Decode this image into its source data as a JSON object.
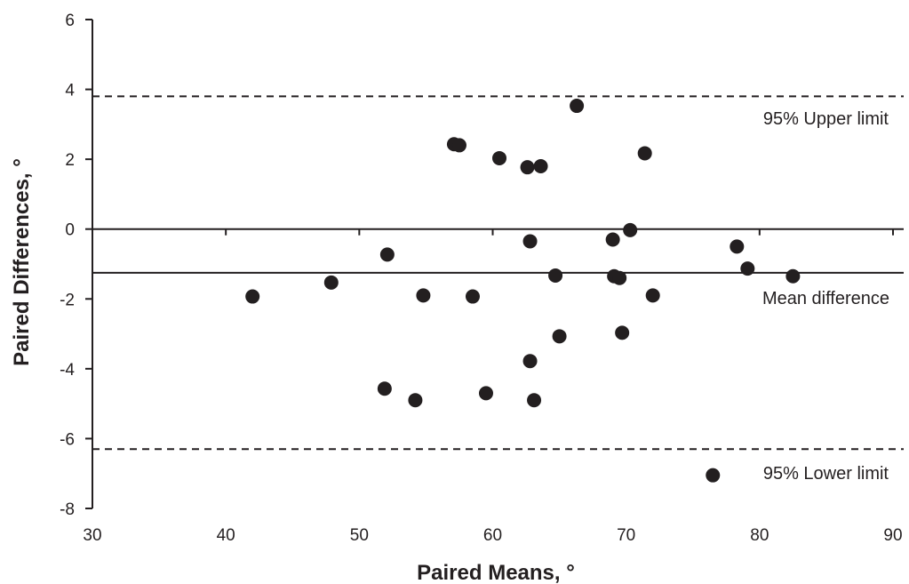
{
  "chart_data": {
    "type": "scatter",
    "xlabel": "Paired Means, °",
    "ylabel": "Paired Differences, °",
    "xlim": [
      30,
      90
    ],
    "ylim": [
      -8,
      6
    ],
    "x_ticks": [
      30,
      40,
      50,
      60,
      70,
      80,
      90
    ],
    "y_ticks": [
      -8,
      -6,
      -4,
      -2,
      0,
      2,
      4,
      6
    ],
    "reference_lines": [
      {
        "label": "95% Upper limit",
        "y": 3.8,
        "style": "dashed"
      },
      {
        "label": "Mean difference",
        "y": -1.25,
        "style": "solid"
      },
      {
        "label": "95% Lower limit",
        "y": -6.3,
        "style": "dashed"
      },
      {
        "label": "",
        "y": 0,
        "style": "solid"
      }
    ],
    "series": [
      {
        "color": "#231f20",
        "points": [
          {
            "x": 42.0,
            "y": -1.93
          },
          {
            "x": 47.9,
            "y": -1.53
          },
          {
            "x": 51.9,
            "y": -4.57
          },
          {
            "x": 52.1,
            "y": -0.73
          },
          {
            "x": 54.2,
            "y": -4.9
          },
          {
            "x": 54.8,
            "y": -1.9
          },
          {
            "x": 57.1,
            "y": 2.43
          },
          {
            "x": 57.5,
            "y": 2.4
          },
          {
            "x": 58.5,
            "y": -1.93
          },
          {
            "x": 59.5,
            "y": -4.7
          },
          {
            "x": 60.5,
            "y": 2.03
          },
          {
            "x": 62.6,
            "y": 1.77
          },
          {
            "x": 62.8,
            "y": -0.35
          },
          {
            "x": 62.8,
            "y": -3.78
          },
          {
            "x": 63.1,
            "y": -4.9
          },
          {
            "x": 63.6,
            "y": 1.8
          },
          {
            "x": 64.7,
            "y": -1.33
          },
          {
            "x": 65.0,
            "y": -3.07
          },
          {
            "x": 66.3,
            "y": 3.53
          },
          {
            "x": 69.0,
            "y": -0.3
          },
          {
            "x": 69.1,
            "y": -1.35
          },
          {
            "x": 69.5,
            "y": -1.4
          },
          {
            "x": 69.7,
            "y": -2.97
          },
          {
            "x": 70.3,
            "y": -0.03
          },
          {
            "x": 71.4,
            "y": 2.17
          },
          {
            "x": 72.0,
            "y": -1.9
          },
          {
            "x": 78.3,
            "y": -0.5
          },
          {
            "x": 79.1,
            "y": -1.13
          },
          {
            "x": 82.5,
            "y": -1.35
          }
        ]
      }
    ],
    "legend_marker": {
      "x": 76.5,
      "y": -7.05
    }
  }
}
